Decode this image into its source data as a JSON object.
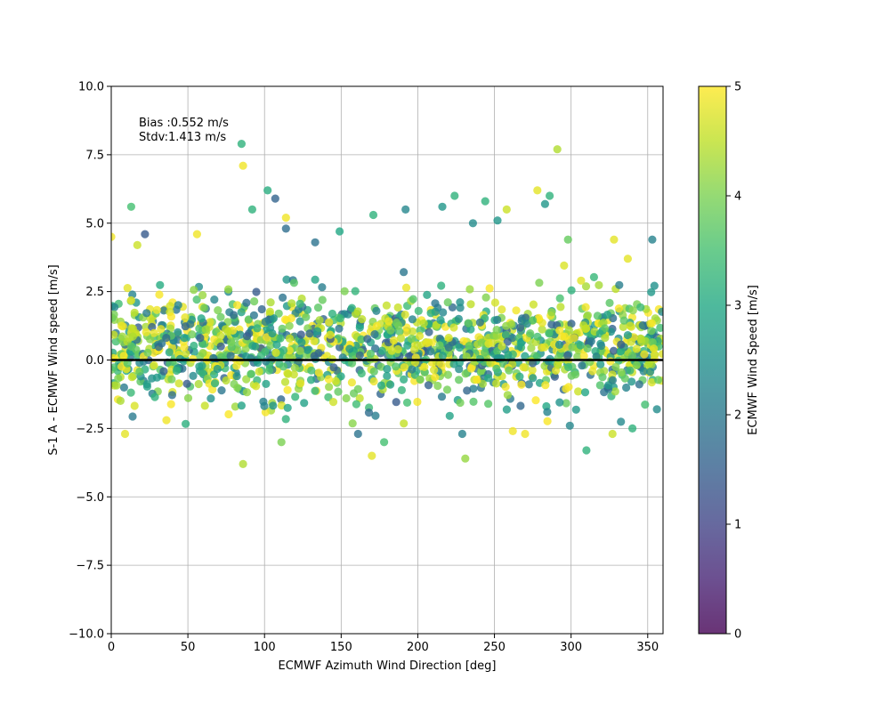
{
  "chart_data": {
    "type": "scatter",
    "xlabel": "ECMWF Azimuth Wind Direction [deg]",
    "ylabel": "S-1 A - ECMWF Wind speed [m/s]",
    "xlim": [
      0,
      360
    ],
    "ylim": [
      -10,
      10
    ],
    "x_ticks": [
      0,
      50,
      100,
      150,
      200,
      250,
      300,
      350
    ],
    "x_tick_labels": [
      "0",
      "50",
      "100",
      "150",
      "200",
      "250",
      "300",
      "350"
    ],
    "y_ticks": [
      -10,
      -7.5,
      -5,
      -2.5,
      0,
      2.5,
      5,
      7.5,
      10
    ],
    "y_tick_labels": [
      "−10.0",
      "−7.5",
      "−5.0",
      "−2.5",
      "0.0",
      "2.5",
      "5.0",
      "7.5",
      "10.0"
    ],
    "grid": true,
    "zero_line": 0,
    "annotations": [
      "Bias :0.552 m/s",
      "Stdv:1.413 m/s"
    ],
    "colorbar": {
      "label": "ECMWF Wind Speed [m/s]",
      "colormap": "viridis",
      "range": [
        0,
        5
      ],
      "ticks": [
        0,
        1,
        2,
        3,
        4,
        5
      ],
      "tick_labels": [
        "0",
        "1",
        "2",
        "3",
        "4",
        "5"
      ]
    },
    "point_count": 1500,
    "points": [
      [
        0,
        4.5,
        4.9
      ],
      [
        13,
        5.6,
        3.5
      ],
      [
        22,
        4.6,
        1.4
      ],
      [
        56,
        4.6,
        4.9
      ],
      [
        17,
        4.2,
        4.6
      ],
      [
        85,
        7.9,
        3.2
      ],
      [
        86,
        7.1,
        4.9
      ],
      [
        92,
        5.5,
        3.2
      ],
      [
        102,
        6.2,
        3.1
      ],
      [
        107,
        5.9,
        1.6
      ],
      [
        114,
        4.8,
        1.8
      ],
      [
        114,
        5.2,
        4.9
      ],
      [
        133,
        4.3,
        1.9
      ],
      [
        149,
        4.7,
        3.0
      ],
      [
        171,
        5.3,
        3.2
      ],
      [
        192,
        5.5,
        2.3
      ],
      [
        216,
        5.6,
        2.6
      ],
      [
        224,
        6.0,
        3.2
      ],
      [
        236,
        5.0,
        2.4
      ],
      [
        244,
        5.8,
        3.2
      ],
      [
        252,
        5.1,
        2.6
      ],
      [
        258,
        5.5,
        4.6
      ],
      [
        278,
        6.2,
        4.8
      ],
      [
        286,
        6.0,
        3.2
      ],
      [
        283,
        5.7,
        2.6
      ],
      [
        291,
        7.7,
        4.4
      ],
      [
        328,
        4.4,
        4.8
      ],
      [
        353,
        4.4,
        2.2
      ],
      [
        337,
        3.7,
        4.8
      ],
      [
        298,
        4.4,
        3.8
      ],
      [
        86,
        -3.8,
        4.4
      ],
      [
        111,
        -3.0,
        4.0
      ],
      [
        170,
        -3.5,
        4.8
      ],
      [
        178,
        -3.0,
        3.5
      ],
      [
        231,
        -3.6,
        4.2
      ],
      [
        310,
        -3.3,
        3.2
      ],
      [
        9,
        -2.7,
        4.8
      ],
      [
        36,
        -2.2,
        4.9
      ],
      [
        161,
        -2.7,
        1.9
      ],
      [
        229,
        -2.7,
        2.2
      ],
      [
        262,
        -2.6,
        4.9
      ],
      [
        270,
        -2.7,
        4.9
      ],
      [
        327,
        -2.7,
        4.6
      ],
      [
        340,
        -2.5,
        3.2
      ],
      [
        356,
        -1.8,
        2.4
      ]
    ]
  }
}
